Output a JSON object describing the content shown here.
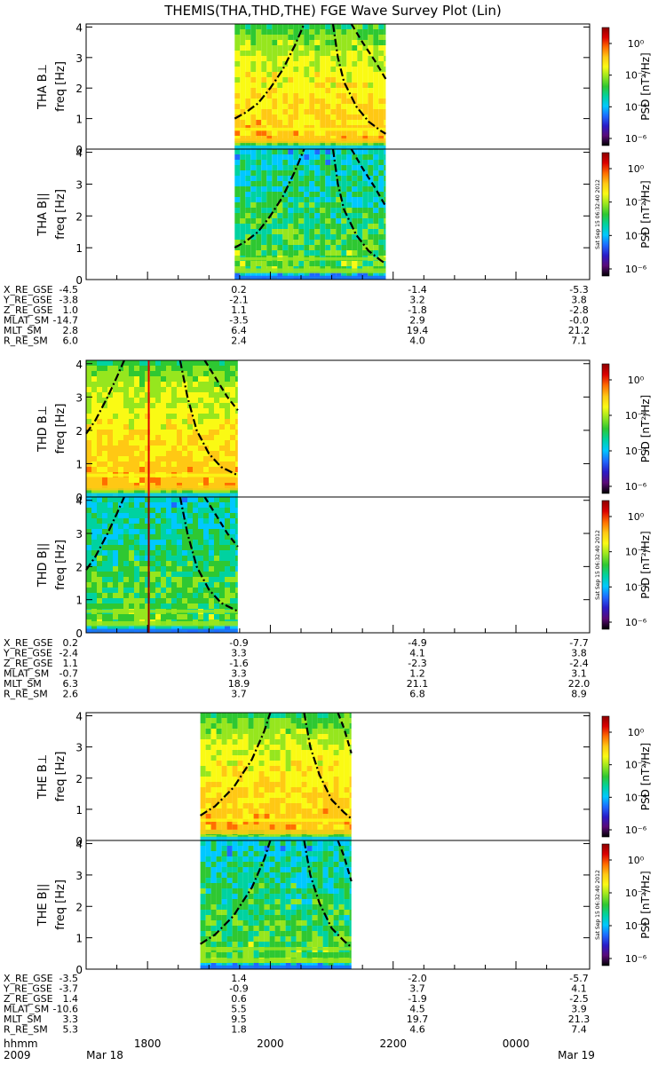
{
  "title": "THEMIS(THA,THD,THE) FGE Wave Survey Plot (Lin)",
  "colorbar": {
    "label": "PSD [nT²/Hz]",
    "ticks": [
      "10⁰",
      "10⁻²",
      "10⁻⁴",
      "10⁻⁶"
    ],
    "stamp": "Sat Sep 15 06:32:40 2012",
    "colors": [
      "#000000",
      "#5a0a78",
      "#2a1cc8",
      "#1e6aff",
      "#00c8ff",
      "#00d2a0",
      "#2ec832",
      "#96e61e",
      "#fafa14",
      "#ffc814",
      "#ff6e00",
      "#dc0000",
      "#8c0000"
    ]
  },
  "ephemeris_labels": [
    "X_RE_GSE",
    "Y_RE_GSE",
    "Z_RE_GSE",
    "MLAT_SM",
    "MLT_SM",
    "R_RE_SM"
  ],
  "time_axis": {
    "hhmm_label": "hhmm",
    "ticks": [
      "1800",
      "2000",
      "2200",
      "0000"
    ],
    "year": "2009",
    "start_date": "Mar 18",
    "end_date": "Mar 19"
  },
  "chart_data": [
    {
      "type": "heatmap",
      "probe": "THA",
      "x_unit": "hours UT (18.0 = 18:00 Mar 18, 24.0 = 00:00 Mar 19)",
      "x_range": [
        17.0,
        25.2
      ],
      "panels": [
        {
          "ylabel": "THA B⊥",
          "sublabel": "freq [Hz]"
        },
        {
          "ylabel": "THA B||",
          "sublabel": "freq [Hz]"
        }
      ],
      "ylim": [
        0,
        4.1
      ],
      "yticks": [
        "0",
        "1",
        "2",
        "3",
        "4"
      ],
      "data_interval": [
        19.42,
        21.88
      ],
      "lines": [
        {
          "style": "dash-dot",
          "points": [
            [
              19.42,
              1.0
            ],
            [
              19.6,
              1.2
            ],
            [
              19.8,
              1.5
            ],
            [
              20.0,
              2.0
            ],
            [
              20.2,
              2.6
            ],
            [
              20.4,
              3.4
            ],
            [
              20.55,
              4.1
            ]
          ]
        },
        {
          "style": "dash-dot",
          "points": [
            [
              21.02,
              4.1
            ],
            [
              21.1,
              3.0
            ],
            [
              21.2,
              2.2
            ],
            [
              21.4,
              1.4
            ],
            [
              21.6,
              0.9
            ],
            [
              21.8,
              0.6
            ],
            [
              21.88,
              0.5
            ]
          ]
        },
        {
          "style": "dash",
          "points": [
            [
              21.32,
              4.1
            ],
            [
              21.5,
              3.5
            ],
            [
              21.7,
              2.9
            ],
            [
              21.88,
              2.3
            ]
          ]
        }
      ],
      "ephemeris": {
        "X_RE_GSE": [
          "-4.5",
          "0.2",
          "-1.4",
          "-5.3"
        ],
        "Y_RE_GSE": [
          "-3.8",
          "-2.1",
          "3.2",
          "3.8"
        ],
        "Z_RE_GSE": [
          "1.0",
          "1.1",
          "-1.8",
          "-2.8"
        ],
        "MLAT_SM": [
          "-14.7",
          "-3.5",
          "2.9",
          "-0.0"
        ],
        "MLT_SM": [
          "2.8",
          "6.4",
          "19.4",
          "21.2"
        ],
        "R_RE_SM": [
          "6.0",
          "2.4",
          "4.0",
          "7.1"
        ]
      }
    },
    {
      "type": "heatmap",
      "probe": "THD",
      "x_unit": "hours UT (18.0 = 18:00 Mar 18, 24.0 = 00:00 Mar 19)",
      "x_range": [
        17.0,
        25.2
      ],
      "panels": [
        {
          "ylabel": "THD B⊥",
          "sublabel": "freq [Hz]"
        },
        {
          "ylabel": "THD B||",
          "sublabel": "freq [Hz]"
        }
      ],
      "ylim": [
        0,
        4.1
      ],
      "yticks": [
        "0",
        "1",
        "2",
        "3",
        "4"
      ],
      "data_interval": [
        17.0,
        19.47
      ],
      "spike_time": 18.02,
      "lines": [
        {
          "style": "dash-dot",
          "points": [
            [
              17.0,
              1.9
            ],
            [
              17.15,
              2.3
            ],
            [
              17.35,
              3.0
            ],
            [
              17.5,
              3.6
            ],
            [
              17.62,
              4.1
            ]
          ]
        },
        {
          "style": "dash-dot",
          "points": [
            [
              18.53,
              4.1
            ],
            [
              18.65,
              3.0
            ],
            [
              18.8,
              2.0
            ],
            [
              19.0,
              1.3
            ],
            [
              19.2,
              0.9
            ],
            [
              19.47,
              0.65
            ]
          ]
        },
        {
          "style": "dash",
          "points": [
            [
              18.93,
              4.1
            ],
            [
              19.1,
              3.6
            ],
            [
              19.3,
              3.0
            ],
            [
              19.47,
              2.6
            ]
          ]
        }
      ],
      "ephemeris": {
        "X_RE_GSE": [
          "0.2",
          "-0.9",
          "-4.9",
          "-7.7"
        ],
        "Y_RE_GSE": [
          "-2.4",
          "3.3",
          "4.1",
          "3.8"
        ],
        "Z_RE_GSE": [
          "1.1",
          "-1.6",
          "-2.3",
          "-2.4"
        ],
        "MLAT_SM": [
          "-0.7",
          "3.3",
          "1.2",
          "3.1"
        ],
        "MLT_SM": [
          "6.3",
          "18.9",
          "21.1",
          "22.0"
        ],
        "R_RE_SM": [
          "2.6",
          "3.7",
          "6.8",
          "8.9"
        ]
      }
    },
    {
      "type": "heatmap",
      "probe": "THE",
      "x_unit": "hours UT (18.0 = 18:00 Mar 18, 24.0 = 00:00 Mar 19)",
      "x_range": [
        17.0,
        25.2
      ],
      "panels": [
        {
          "ylabel": "THE B⊥",
          "sublabel": "freq [Hz]"
        },
        {
          "ylabel": "THE B||",
          "sublabel": "freq [Hz]"
        }
      ],
      "ylim": [
        0,
        4.1
      ],
      "yticks": [
        "0",
        "1",
        "2",
        "3",
        "4"
      ],
      "data_interval": [
        18.86,
        21.32
      ],
      "lines": [
        {
          "style": "dash-dot",
          "points": [
            [
              18.86,
              0.8
            ],
            [
              19.1,
              1.1
            ],
            [
              19.4,
              1.7
            ],
            [
              19.7,
              2.6
            ],
            [
              19.9,
              3.5
            ],
            [
              20.0,
              4.1
            ]
          ]
        },
        {
          "style": "dash-dot",
          "points": [
            [
              20.55,
              4.1
            ],
            [
              20.65,
              3.0
            ],
            [
              20.8,
              2.1
            ],
            [
              21.0,
              1.3
            ],
            [
              21.2,
              0.9
            ],
            [
              21.32,
              0.7
            ]
          ]
        },
        {
          "style": "dash",
          "points": [
            [
              21.1,
              4.1
            ],
            [
              21.2,
              3.6
            ],
            [
              21.32,
              2.8
            ]
          ]
        }
      ],
      "ephemeris": {
        "X_RE_GSE": [
          "-3.5",
          "1.4",
          "-2.0",
          "-5.7"
        ],
        "Y_RE_GSE": [
          "-3.7",
          "-0.9",
          "3.7",
          "4.1"
        ],
        "Z_RE_GSE": [
          "1.4",
          "0.6",
          "-1.9",
          "-2.5"
        ],
        "MLAT_SM": [
          "-10.6",
          "5.5",
          "4.5",
          "3.9"
        ],
        "MLT_SM": [
          "3.3",
          "9.5",
          "19.7",
          "21.3"
        ],
        "R_RE_SM": [
          "5.3",
          "1.8",
          "4.6",
          "7.4"
        ]
      }
    }
  ]
}
